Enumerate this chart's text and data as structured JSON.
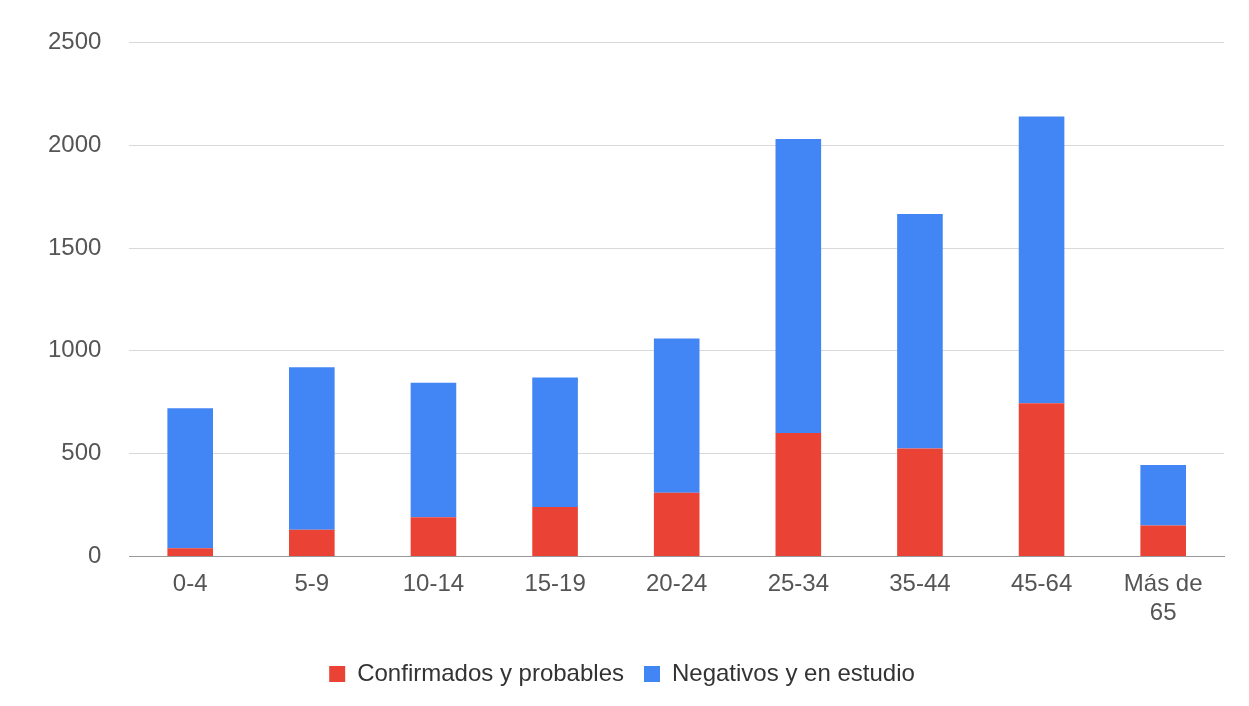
{
  "chart_data": {
    "type": "bar",
    "stacked": true,
    "categories": [
      "0-4",
      "5-9",
      "10-14",
      "15-19",
      "20-24",
      "25-34",
      "35-44",
      "45-64",
      "Más de 65"
    ],
    "series": [
      {
        "name": "Confirmados y probables",
        "color": "#ea4335",
        "values": [
          40,
          130,
          190,
          240,
          310,
          600,
          525,
          745,
          150
        ]
      },
      {
        "name": "Negativos y en estudio",
        "color": "#4285f4",
        "values": [
          680,
          790,
          655,
          630,
          750,
          1430,
          1140,
          1395,
          295
        ]
      }
    ],
    "ylim": [
      0,
      2500
    ],
    "yticks": [
      0,
      500,
      1000,
      1500,
      2000,
      2500
    ],
    "grid": "y",
    "legend": "bottom"
  }
}
